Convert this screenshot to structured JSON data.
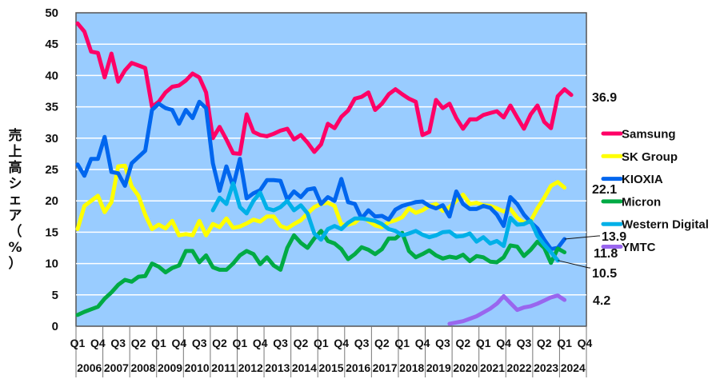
{
  "chart_data": {
    "type": "line",
    "title": "",
    "ylabel": "売上高シェア（%）",
    "xlabel": "",
    "ylim": [
      0,
      50
    ],
    "yticks": [
      "0",
      "5",
      "10",
      "15",
      "20",
      "25",
      "30",
      "35",
      "40",
      "45",
      "50"
    ],
    "grid": true,
    "legend_position": "right",
    "quarter_labels": [
      "Q1",
      "Q4",
      "Q3",
      "Q2",
      "Q1",
      "Q4",
      "Q3",
      "Q2",
      "Q1",
      "Q4",
      "Q3",
      "Q2",
      "Q1",
      "Q4",
      "Q3",
      "Q2",
      "Q1",
      "Q4",
      "Q3",
      "Q2",
      "Q1",
      "Q4",
      "Q3",
      "Q2",
      "Q1",
      "Q4"
    ],
    "year_labels": [
      "2006",
      "2007",
      "2008",
      "2009",
      "2010",
      "2011",
      "2012",
      "2013",
      "2014",
      "2015",
      "2016",
      "2017",
      "2018",
      "2019",
      "2020",
      "2021",
      "2022",
      "2023",
      "2024"
    ],
    "x_start": "Q1 2006",
    "x_end": "Q4 2024",
    "num_quarters": 76,
    "series": [
      {
        "name": "Samsung",
        "color": "#ff0066",
        "end_label": "36.9",
        "values": [
          48.3,
          47,
          43.8,
          43.6,
          39.7,
          43.5,
          39,
          40.8,
          42,
          41.6,
          41.2,
          35,
          35.8,
          37.3,
          38.2,
          38.4,
          39.2,
          40.3,
          39.7,
          37.3,
          30,
          31.8,
          29.8,
          27.6,
          27.5,
          33.8,
          31,
          30.5,
          30.3,
          30.7,
          31.2,
          31.5,
          29.8,
          30.5,
          29.3,
          27.8,
          29,
          32.3,
          31.6,
          33.4,
          34.4,
          36.3,
          36.6,
          37.3,
          34.5,
          35.5,
          37,
          37.8,
          37,
          36.3,
          35.8,
          30.5,
          31,
          36.1,
          34.8,
          35.5,
          33.2,
          31.5,
          33,
          33,
          33.7,
          34,
          34.3,
          33.3,
          35.2,
          33.3,
          31.5,
          33.8,
          35.2,
          32.6,
          31.6,
          36.7,
          37.8,
          36.9,
          null,
          null
        ]
      },
      {
        "name": "SK Group",
        "color": "#ffff00",
        "end_label": "22.1",
        "values": [
          15.5,
          19.2,
          20,
          20.8,
          18.2,
          19.8,
          25.5,
          25.6,
          22.3,
          20.8,
          17.8,
          15.5,
          16.2,
          15.6,
          16.8,
          14.5,
          14.7,
          14.5,
          16.8,
          14.5,
          16.3,
          15.8,
          17.2,
          15.7,
          15.9,
          16.4,
          17,
          16.7,
          17.5,
          17.5,
          16,
          15.6,
          16.3,
          16.9,
          18,
          19,
          19.5,
          19.7,
          19.2,
          16.2,
          16.2,
          16.5,
          17.5,
          16.8,
          16.1,
          15.8,
          16.6,
          16.9,
          17.4,
          18.8,
          18.1,
          18.5,
          19.2,
          19.5,
          18.4,
          19,
          20,
          21,
          19.5,
          19.7,
          19.3,
          19.2,
          18.8,
          18.3,
          18.7,
          17.3,
          16.5,
          16.8,
          18.8,
          20.5,
          22.4,
          23,
          22.1,
          null,
          null,
          null
        ]
      },
      {
        "name": "KIOXIA",
        "color": "#0066ee",
        "end_label": "13.9",
        "values": [
          25.8,
          24,
          26.7,
          26.7,
          30.2,
          24.6,
          24.4,
          22.4,
          26,
          27,
          28,
          34.5,
          35.5,
          34.8,
          34.5,
          32.3,
          34.5,
          33.2,
          35.8,
          34.8,
          26,
          21.6,
          25.5,
          22.3,
          26.7,
          20.4,
          21.2,
          21.7,
          23.3,
          23.3,
          23.2,
          20.2,
          21.5,
          20.6,
          21.8,
          22,
          19.5,
          20.6,
          20,
          23.5,
          19.8,
          19.5,
          17.2,
          18.5,
          17.5,
          17.6,
          17,
          18.6,
          19.2,
          19.5,
          19.8,
          19.9,
          19.2,
          18.8,
          19.3,
          17.5,
          21.5,
          19.5,
          18.7,
          18.7,
          19.2,
          18.9,
          17.8,
          16,
          20.6,
          19.5,
          17.8,
          16.6,
          15.6,
          13.8,
          12.3,
          12.5,
          13.9,
          null,
          null,
          null
        ]
      },
      {
        "name": "Micron",
        "color": "#00aa44",
        "end_label": "11.8",
        "values": [
          1.8,
          2.3,
          2.7,
          3.1,
          4.4,
          5.4,
          6.6,
          7.4,
          7.1,
          7.9,
          8,
          10,
          9.5,
          8.6,
          9.3,
          9.7,
          12,
          12,
          10.2,
          11.3,
          9.4,
          9,
          9,
          10,
          11.3,
          12,
          11.5,
          9.9,
          11,
          9.7,
          9,
          12.5,
          14.5,
          13.3,
          12.5,
          14,
          15.2,
          13.6,
          13.2,
          12.3,
          10.7,
          11.5,
          12.6,
          12.2,
          11.5,
          12.3,
          14,
          14,
          14.9,
          12,
          11,
          11.5,
          12.1,
          11.3,
          10.8,
          11.1,
          10.9,
          11.4,
          10.4,
          11.2,
          11,
          10.3,
          10.2,
          11,
          12.9,
          12.7,
          11.2,
          12.2,
          13.5,
          12.5,
          10.1,
          12.4,
          11.8,
          null,
          null,
          null
        ]
      },
      {
        "name": "Western Digital",
        "color": "#00b0e8",
        "end_label": "10.5",
        "values": [
          null,
          null,
          null,
          null,
          null,
          null,
          null,
          null,
          null,
          null,
          null,
          null,
          null,
          null,
          null,
          null,
          null,
          null,
          null,
          null,
          18.5,
          20.5,
          19.5,
          22.8,
          19,
          18,
          20,
          21.3,
          18.8,
          18.5,
          19,
          20,
          18.5,
          19.3,
          18,
          14.8,
          13.8,
          15.5,
          16,
          15.5,
          16.5,
          17.2,
          17.2,
          17,
          16.8,
          16.3,
          15.5,
          15.2,
          14.5,
          14.8,
          15.2,
          14.6,
          14.2,
          14.5,
          15,
          15.1,
          14.3,
          14.4,
          14.8,
          13.5,
          14.2,
          13.2,
          13.6,
          12.8,
          17.3,
          16.2,
          16.3,
          16.8,
          14.4,
          13,
          11.8,
          10.5,
          null,
          null,
          null,
          null
        ]
      },
      {
        "name": "YMTC",
        "color": "#9966ee",
        "end_label": "4.2",
        "values": [
          null,
          null,
          null,
          null,
          null,
          null,
          null,
          null,
          null,
          null,
          null,
          null,
          null,
          null,
          null,
          null,
          null,
          null,
          null,
          null,
          null,
          null,
          null,
          null,
          null,
          null,
          null,
          null,
          null,
          null,
          null,
          null,
          null,
          null,
          null,
          null,
          null,
          null,
          null,
          null,
          null,
          null,
          null,
          null,
          null,
          null,
          null,
          null,
          null,
          null,
          null,
          null,
          null,
          null,
          null,
          0.4,
          0.6,
          0.8,
          1.2,
          1.6,
          2.2,
          2.8,
          3.6,
          4.8,
          3.7,
          2.6,
          3,
          3.2,
          3.6,
          4.1,
          4.6,
          4.9,
          4.2,
          null,
          null,
          null
        ]
      }
    ]
  }
}
